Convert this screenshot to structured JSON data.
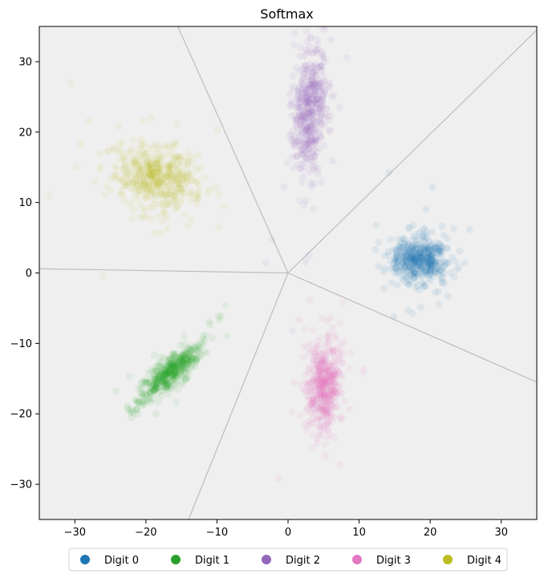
{
  "chart_data": {
    "type": "scatter",
    "title": "Softmax",
    "xlabel": "",
    "ylabel": "",
    "xlim": [
      -35,
      35
    ],
    "ylim": [
      -35,
      35
    ],
    "xticks": [
      -30,
      -20,
      -10,
      0,
      10,
      20,
      30
    ],
    "yticks": [
      -30,
      -20,
      -10,
      0,
      10,
      20,
      30
    ],
    "xtick_labels": [
      "−30",
      "−20",
      "−10",
      "0",
      "10",
      "20",
      "30"
    ],
    "ytick_labels": [
      "−30",
      "−20",
      "−10",
      "0",
      "10",
      "20",
      "30"
    ],
    "grid": false,
    "plot_background": "#efefef",
    "boundary_color": "#bdbdbd",
    "legend_position": "bottom-center",
    "decision_boundaries": [
      {
        "from": [
          0,
          0
        ],
        "to": [
          -15.5,
          35
        ]
      },
      {
        "from": [
          0,
          0
        ],
        "to": [
          35,
          34.5
        ]
      },
      {
        "from": [
          0,
          0
        ],
        "to": [
          35,
          -15.5
        ]
      },
      {
        "from": [
          0,
          0
        ],
        "to": [
          -14,
          -35
        ]
      },
      {
        "from": [
          0,
          0
        ],
        "to": [
          -35,
          0.6
        ]
      }
    ],
    "series": [
      {
        "name": "Digit 0",
        "color": "#1f77b4",
        "center": [
          18.5,
          2.0
        ],
        "spread": [
          2.0,
          1.6
        ],
        "corr": 0.0,
        "count": 500
      },
      {
        "name": "Digit 1",
        "color": "#2ca02c",
        "center": [
          -16.5,
          -14.0
        ],
        "spread": [
          2.2,
          2.1
        ],
        "corr": 0.85,
        "count": 500
      },
      {
        "name": "Digit 2",
        "color": "#9467bd",
        "center": [
          3.0,
          23.0
        ],
        "spread": [
          1.2,
          4.5
        ],
        "corr": 0.2,
        "count": 500
      },
      {
        "name": "Digit 3",
        "color": "#e377c2",
        "center": [
          5.0,
          -16.0
        ],
        "spread": [
          1.3,
          3.0
        ],
        "corr": 0.1,
        "count": 500
      },
      {
        "name": "Digit 4",
        "color": "#bcbd22",
        "center": [
          -18.5,
          13.5
        ],
        "spread": [
          2.8,
          2.3
        ],
        "corr": -0.2,
        "count": 500
      }
    ]
  }
}
